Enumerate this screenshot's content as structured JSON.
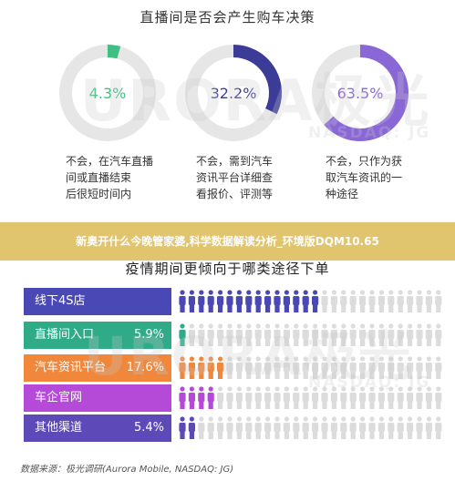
{
  "chart_data": [
    {
      "type": "pie",
      "title": "直播间是否会产生购车决策",
      "slices": [
        {
          "value": 4.3,
          "label": "4.3%",
          "color": "#3fbf83",
          "desc": "不会，在汽车直播\n间或直播结束\n后很短时间内"
        },
        {
          "value": 32.2,
          "label": "32.2%",
          "color": "#3c3c98",
          "desc": "不会，需到汽车\n资讯平台详细查\n看报价、评测等"
        },
        {
          "value": 63.5,
          "label": "63.5%",
          "color": "#8a67d6",
          "desc": "不会，只作为获\n取汽车资讯的一\n种途径"
        }
      ]
    },
    {
      "type": "bar",
      "title": "疫情期间更倾向于哪类途径下单",
      "categories": [
        "线下4S店",
        "直播间入口",
        "汽车资讯平台",
        "车企官网",
        "其他渠道"
      ],
      "labels": [
        "",
        "5.9%",
        "17.6%",
        "",
        "5.4%"
      ],
      "colors": [
        "#4a48b5",
        "#2fab88",
        "#f0873a",
        "#b64ad8",
        "#5d4ab8"
      ],
      "filled_icons": [
        15,
        1,
        5,
        4,
        2
      ],
      "total_icons": 28
    }
  ],
  "banner": "新奥开什么今晚管家婆,科学数据解读分析_环境版DQM10.65",
  "source": "数据来源：极光调研(Aurora Mobile, NASDAQ: JG)",
  "watermark": {
    "main": "URORA极光",
    "sub": "NASDAQ: JG"
  }
}
